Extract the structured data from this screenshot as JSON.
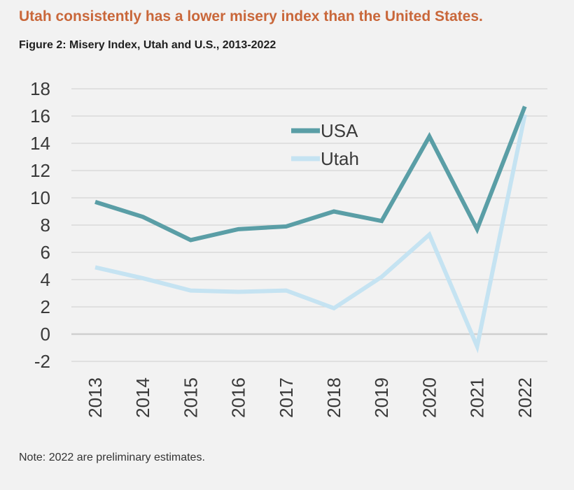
{
  "headline": "Utah consistently has a lower misery index than the United States.",
  "figure_title": "Figure 2: Misery Index, Utah and U.S., 2013-2022",
  "note": "Note: 2022 are preliminary estimates.",
  "chart_data": {
    "type": "line",
    "title": "Figure 2: Misery Index, Utah and U.S., 2013-2022",
    "xlabel": "",
    "ylabel": "",
    "categories": [
      "2013",
      "2014",
      "2015",
      "2016",
      "2017",
      "2018",
      "2019",
      "2020",
      "2021",
      "2022"
    ],
    "ylim": [
      -2,
      18
    ],
    "yticks": [
      -2,
      0,
      2,
      4,
      6,
      8,
      10,
      12,
      14,
      16,
      18
    ],
    "grid": "horizontal",
    "legend_position": "top-center",
    "series": [
      {
        "name": "USA",
        "color": "#5a9ea6",
        "values": [
          9.7,
          8.6,
          6.9,
          7.7,
          7.9,
          9.0,
          8.3,
          14.5,
          7.7,
          16.7
        ]
      },
      {
        "name": "Utah",
        "color": "#c5e3f2",
        "values": [
          4.9,
          4.1,
          3.2,
          3.1,
          3.2,
          1.9,
          4.2,
          7.3,
          -0.9,
          16.1
        ]
      }
    ]
  }
}
